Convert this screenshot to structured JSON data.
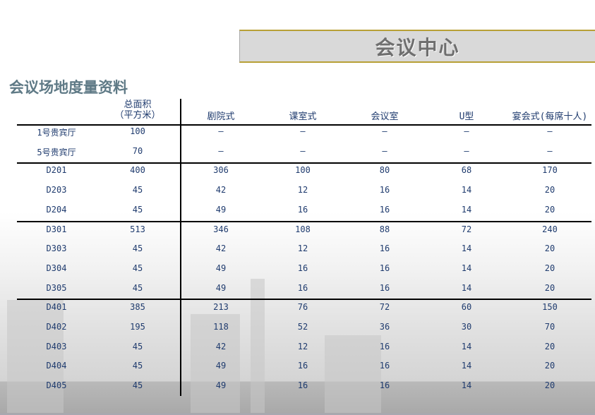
{
  "title": "会议中心",
  "subtitle": "会议场地度量资料",
  "table": {
    "headers": [
      "",
      "总面积\n（平方米）",
      "剧院式",
      "课室式",
      "会议室",
      "U型",
      "宴会式(每席十人)"
    ],
    "rows": [
      [
        "1号贵宾厅",
        "100",
        "—",
        "—",
        "—",
        "—",
        "—"
      ],
      [
        "5号贵宾厅",
        "70",
        "—",
        "—",
        "—",
        "—",
        "—"
      ],
      [
        "D201",
        "400",
        "306",
        "100",
        "80",
        "68",
        "170"
      ],
      [
        "D203",
        "45",
        "42",
        "12",
        "16",
        "14",
        "20"
      ],
      [
        "D204",
        "45",
        "49",
        "16",
        "16",
        "14",
        "20"
      ],
      [
        "D301",
        "513",
        "346",
        "108",
        "88",
        "72",
        "240"
      ],
      [
        "D303",
        "45",
        "42",
        "12",
        "16",
        "14",
        "20"
      ],
      [
        "D304",
        "45",
        "49",
        "16",
        "16",
        "14",
        "20"
      ],
      [
        "D305",
        "45",
        "49",
        "16",
        "16",
        "14",
        "20"
      ],
      [
        "D401",
        "385",
        "213",
        "76",
        "72",
        "60",
        "150"
      ],
      [
        "D402",
        "195",
        "118",
        "52",
        "36",
        "30",
        "70"
      ],
      [
        "D403",
        "45",
        "42",
        "12",
        "16",
        "14",
        "20"
      ],
      [
        "D404",
        "45",
        "49",
        "16",
        "16",
        "14",
        "20"
      ],
      [
        "D405",
        "45",
        "49",
        "16",
        "16",
        "14",
        "20"
      ]
    ]
  }
}
